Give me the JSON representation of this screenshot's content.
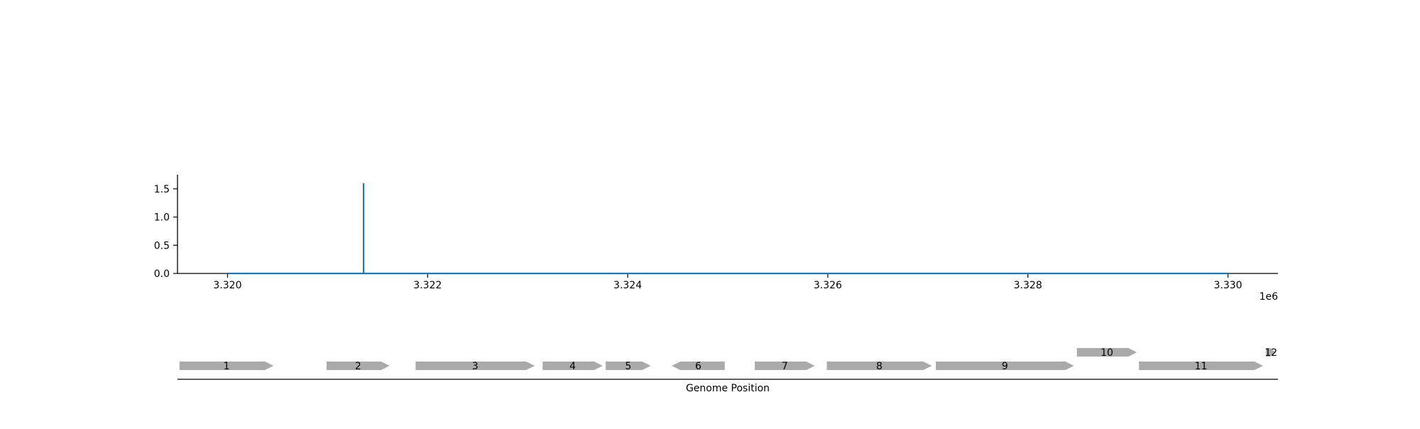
{
  "chart_data": [
    {
      "type": "line",
      "title": "",
      "xlabel": "",
      "ylabel": "",
      "x_offset_label": "1e6",
      "xlim": [
        3.3195,
        3.3305
      ],
      "ylim": [
        0,
        1.75
      ],
      "x_ticks": [
        3.32,
        3.322,
        3.324,
        3.326,
        3.328,
        3.33
      ],
      "x_tick_labels": [
        "3.320",
        "3.322",
        "3.324",
        "3.326",
        "3.328",
        "3.330"
      ],
      "y_ticks": [
        0.0,
        0.5,
        1.0,
        1.5
      ],
      "y_tick_labels": [
        "0.0",
        "0.5",
        "1.0",
        "1.5"
      ],
      "grid": false,
      "series": [
        {
          "color": "#1f77b4",
          "x": [
            3.32,
            3.32136,
            3.32136,
            3.32136,
            3.33
          ],
          "y": [
            0,
            0,
            1.6,
            0,
            0
          ]
        }
      ]
    },
    {
      "type": "gene-track",
      "xlabel": "Genome Position",
      "xlim": [
        3.3195,
        3.3305
      ],
      "gene_color": "#aaaaaa",
      "genes": [
        {
          "label": "1",
          "start": 3.31952,
          "end": 3.32046,
          "strand": "+",
          "row": 0
        },
        {
          "label": "2",
          "start": 3.32099,
          "end": 3.32162,
          "strand": "+",
          "row": 0
        },
        {
          "label": "3",
          "start": 3.32188,
          "end": 3.32307,
          "strand": "+",
          "row": 0
        },
        {
          "label": "4",
          "start": 3.32315,
          "end": 3.32375,
          "strand": "+",
          "row": 0
        },
        {
          "label": "5",
          "start": 3.32378,
          "end": 3.32423,
          "strand": "+",
          "row": 0
        },
        {
          "label": "6",
          "start": 3.32444,
          "end": 3.32497,
          "strand": "-",
          "row": 0
        },
        {
          "label": "7",
          "start": 3.32527,
          "end": 3.32587,
          "strand": "+",
          "row": 0
        },
        {
          "label": "8",
          "start": 3.32599,
          "end": 3.32704,
          "strand": "+",
          "row": 0
        },
        {
          "label": "9",
          "start": 3.32708,
          "end": 3.32846,
          "strand": "+",
          "row": 0
        },
        {
          "label": "10",
          "start": 3.32849,
          "end": 3.32909,
          "strand": "+",
          "row": 1
        },
        {
          "label": "11",
          "start": 3.32911,
          "end": 3.33035,
          "strand": "+",
          "row": 0
        },
        {
          "label": "12",
          "start": 3.33038,
          "end": 3.33048,
          "strand": "+",
          "row": 1
        }
      ]
    }
  ]
}
